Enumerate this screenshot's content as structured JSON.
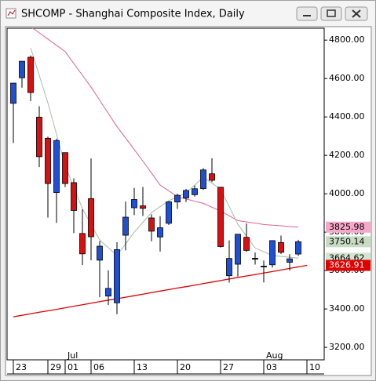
{
  "chart_data": {
    "type": "candlestick",
    "title": "SHCOMP - Shanghai Composite Index, Daily",
    "categories": [
      "23",
      null,
      null,
      null,
      "29",
      null,
      "01",
      null,
      null,
      "06",
      null,
      null,
      null,
      null,
      "13",
      null,
      null,
      null,
      null,
      "20",
      null,
      null,
      null,
      null,
      "27",
      null,
      null,
      null,
      null,
      "03",
      null,
      null,
      null,
      null,
      "10"
    ],
    "month_labels": [
      null,
      null,
      null,
      null,
      null,
      null,
      "Jul",
      null,
      null,
      null,
      null,
      null,
      null,
      null,
      null,
      null,
      null,
      null,
      null,
      null,
      null,
      null,
      null,
      null,
      null,
      null,
      null,
      null,
      null,
      "Aug",
      null,
      null,
      null,
      null,
      null
    ],
    "open": [
      4471,
      4604,
      4711,
      4399,
      4289,
      4006,
      4214,
      4058,
      3793,
      3975,
      3654,
      3467,
      3432,
      3784,
      3927,
      3937,
      3874,
      3775,
      3846,
      3957,
      3978,
      3995,
      4027,
      4104,
      4034,
      3573,
      3633,
      3773,
      3659,
      3621,
      3630,
      3746,
      3643,
      3686,
      null
    ],
    "high": [
      4577,
      4691,
      4720,
      4456,
      4297,
      4287,
      4214,
      4080,
      3919,
      4184,
      3754,
      3601,
      3748,
      3959,
      4030,
      4035,
      3893,
      3883,
      3962,
      4000,
      4025,
      4043,
      4133,
      4185,
      4036,
      3757,
      3791,
      3845,
      3694,
      3652,
      3757,
      3782,
      3685,
      3760,
      null
    ],
    "low": [
      4264,
      4552,
      4483,
      4139,
      3876,
      3848,
      4035,
      3795,
      3629,
      3653,
      3461,
      3421,
      3373,
      3705,
      3889,
      3884,
      3752,
      3699,
      3837,
      3921,
      3957,
      3985,
      4020,
      4060,
      3720,
      3537,
      3569,
      3697,
      3631,
      3538,
      3615,
      3686,
      3600,
      3676,
      null
    ],
    "close": [
      4576,
      4690,
      4527,
      4193,
      4053,
      4277,
      4053,
      3913,
      3687,
      3776,
      3727,
      3507,
      3709,
      3878,
      3970,
      3924,
      3805,
      3823,
      3958,
      3992,
      4017,
      4026,
      4124,
      4070,
      3725,
      3663,
      3789,
      3705,
      3664,
      3623,
      3756,
      3695,
      3661,
      3750.14,
      null
    ],
    "up_color": "#1f4fd6",
    "down_color": "#d81010",
    "overlays": [
      {
        "color": "#e0608a",
        "values": [
          null,
          null,
          4870,
          4838,
          4805,
          4773,
          4740,
          4678,
          4617,
          4555,
          4487,
          4418,
          4350,
          4290,
          4230,
          4170,
          4108,
          4045,
          4015,
          3984,
          3973,
          3961,
          3950,
          3930,
          3910,
          3885,
          3860,
          3853,
          3847,
          3840,
          3836,
          3833,
          3829,
          3825.98,
          null
        ]
      },
      {
        "color": "#a8bca8",
        "values": [
          null,
          null,
          4760,
          4617,
          4473,
          4310,
          4147,
          4035,
          3922,
          3841,
          3759,
          3719,
          3678,
          3739,
          3800,
          3851,
          3902,
          3933,
          3963,
          3984,
          4004,
          4045,
          4086,
          4055,
          4024,
          3933,
          3841,
          3780,
          3718,
          3698,
          3678,
          3674,
          3669,
          3664.62,
          null
        ]
      },
      {
        "color": "#e00000",
        "values": [
          3359,
          3367,
          3375,
          3383,
          3390,
          3398,
          3406,
          3414,
          3422,
          3430,
          3438,
          3446,
          3453,
          3461,
          3469,
          3477,
          3485,
          3493,
          3501,
          3509,
          3516,
          3524,
          3532,
          3540,
          3548,
          3556,
          3564,
          3572,
          3579,
          3587,
          3595,
          3603,
          3611,
          3619,
          3626.91
        ]
      }
    ],
    "ylim": [
      3135,
      4862
    ],
    "yticks": [
      {
        "value": 3200,
        "label": "3200.00"
      },
      {
        "value": 3400,
        "label": "3400.00"
      },
      {
        "value": 3600,
        "label": "3600.00"
      },
      {
        "value": 3800,
        "label": "3800.00"
      },
      {
        "value": 4000,
        "label": "4000.00"
      },
      {
        "value": 4200,
        "label": "4200.00"
      },
      {
        "value": 4400,
        "label": "4400.00"
      },
      {
        "value": 4600,
        "label": "4600.00"
      },
      {
        "value": 4800,
        "label": "4800.00"
      }
    ]
  }
}
